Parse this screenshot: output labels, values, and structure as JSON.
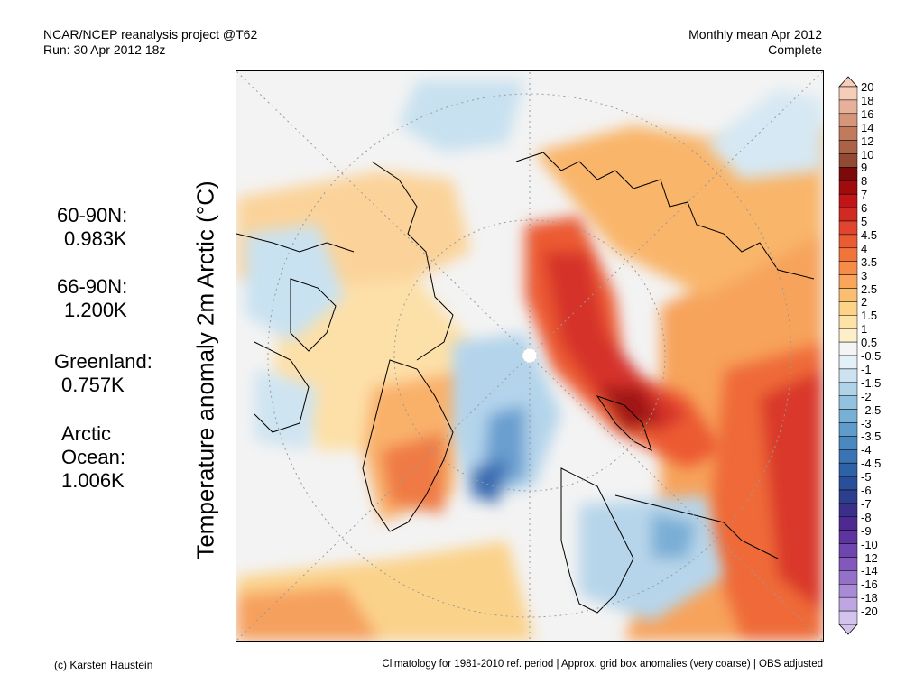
{
  "header": {
    "line1_left": "NCAR/NCEP reanalysis project @T62",
    "line2_left": "Run: 30 Apr 2012 18z",
    "line1_right": "Monthly mean Apr 2012",
    "line2_right": "Complete"
  },
  "ylabel": "Temperature anomaly 2m Arctic (°C)",
  "stats": [
    {
      "label": "60-90N:",
      "value": "0.983K"
    },
    {
      "label": "66-90N:",
      "value": "1.200K"
    },
    {
      "label": "Greenland:",
      "value": "0.757K"
    },
    {
      "label": "Arctic Ocean:",
      "label2": "Ocean:",
      "label1": "Arctic",
      "value": "1.006K"
    }
  ],
  "colorbar": {
    "labels": [
      "20",
      "18",
      "16",
      "14",
      "12",
      "10",
      "9",
      "8",
      "7",
      "6",
      "5",
      "4.5",
      "4",
      "3.5",
      "3",
      "2.5",
      "2",
      "1.5",
      "1",
      "0.5",
      "-0.5",
      "-1",
      "-1.5",
      "-2",
      "-2.5",
      "-3",
      "-3.5",
      "-4",
      "-4.5",
      "-5",
      "-6",
      "-7",
      "-8",
      "-9",
      "-10",
      "-12",
      "-14",
      "-16",
      "-18",
      "-20"
    ],
    "colors": [
      "#f6cdb9",
      "#e7b09a",
      "#d59579",
      "#c27a5c",
      "#ab6247",
      "#934a34",
      "#7c0a0a",
      "#a00c0c",
      "#c1151a",
      "#d02a22",
      "#e0452e",
      "#ea5d33",
      "#f1753a",
      "#f68c48",
      "#f9a55a",
      "#fbbd70",
      "#fdd388",
      "#fde3a5",
      "#fdf0c8",
      "#f4f4f4",
      "#e4f0f8",
      "#cde3f1",
      "#b0d3ea",
      "#93c2e1",
      "#78afd6",
      "#5f9ccb",
      "#4a88c0",
      "#3a74b4",
      "#2f61a7",
      "#2a4f9a",
      "#2c3e8e",
      "#3a2f8a",
      "#4d2a92",
      "#5e34a0",
      "#6f46ae",
      "#8258bc",
      "#9470c8",
      "#a88ad5",
      "#bda6e2",
      "#d3c4ee"
    ]
  },
  "footer": {
    "left": "(c) Karsten Haustein",
    "right": "Climatology for 1981-2010 ref. period | Approx. grid box anomalies (very coarse) | OBS adjusted"
  }
}
